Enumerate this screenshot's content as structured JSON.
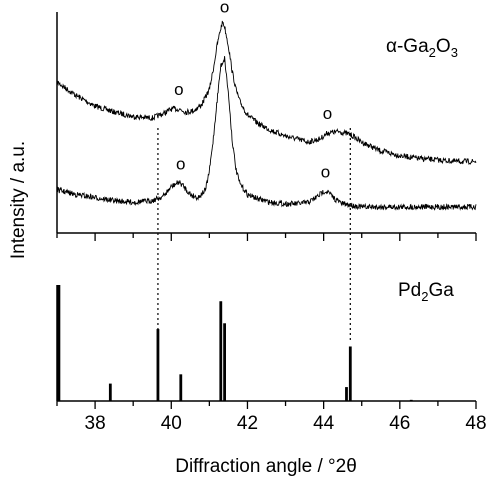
{
  "chart_data": [
    {
      "type": "line",
      "panel": "top",
      "title": "",
      "label": "α-Ga2O3",
      "label_parts": {
        "main": "α-Ga",
        "sub1": "2",
        "mid": "O",
        "sub2": "3"
      },
      "ylabel": "Intensity / a.u.",
      "xlim": [
        37,
        48
      ],
      "x_ticks": [
        38,
        40,
        42,
        44,
        46,
        48
      ],
      "yticks_shown": false,
      "peak_marker": "o",
      "series": [
        {
          "pattern": "upper",
          "x": [
            37.0,
            37.5,
            38.0,
            38.5,
            39.0,
            39.5,
            39.8,
            40.0,
            40.2,
            40.4,
            40.6,
            40.8,
            41.0,
            41.1,
            41.2,
            41.3,
            41.35,
            41.4,
            41.5,
            41.6,
            41.7,
            41.8,
            42.0,
            42.3,
            42.6,
            43.0,
            43.3,
            43.6,
            43.9,
            44.1,
            44.4,
            44.7,
            45.0,
            45.5,
            46.0,
            46.5,
            47.0,
            47.5,
            48.0
          ],
          "y": [
            0.6,
            0.51,
            0.44,
            0.4,
            0.37,
            0.36,
            0.39,
            0.42,
            0.42,
            0.4,
            0.41,
            0.45,
            0.55,
            0.68,
            0.84,
            0.96,
            1.0,
            0.97,
            0.84,
            0.67,
            0.55,
            0.47,
            0.38,
            0.32,
            0.28,
            0.24,
            0.22,
            0.2,
            0.22,
            0.26,
            0.27,
            0.25,
            0.2,
            0.14,
            0.11,
            0.09,
            0.08,
            0.07,
            0.07
          ]
        },
        {
          "pattern": "lower",
          "x": [
            37.0,
            37.5,
            38.0,
            38.5,
            39.0,
            39.5,
            39.8,
            40.0,
            40.2,
            40.3,
            40.5,
            40.7,
            40.9,
            41.0,
            41.1,
            41.2,
            41.3,
            41.4,
            41.5,
            41.6,
            41.7,
            41.8,
            42.0,
            42.3,
            42.6,
            43.0,
            43.3,
            43.6,
            43.8,
            44.0,
            44.1,
            44.3,
            44.5,
            45.0,
            45.5,
            46.0,
            47.0,
            48.0
          ],
          "y": [
            0.13,
            0.1,
            0.08,
            0.06,
            0.05,
            0.06,
            0.09,
            0.15,
            0.18,
            0.16,
            0.1,
            0.08,
            0.13,
            0.25,
            0.45,
            0.7,
            0.93,
            0.98,
            0.75,
            0.45,
            0.26,
            0.17,
            0.1,
            0.07,
            0.05,
            0.04,
            0.04,
            0.05,
            0.08,
            0.12,
            0.12,
            0.07,
            0.04,
            0.02,
            0.02,
            0.02,
            0.02,
            0.02
          ]
        }
      ],
      "annotations": [
        {
          "text": "o",
          "x": 40.2,
          "series": "upper"
        },
        {
          "text": "o",
          "x": 41.4,
          "series": "upper"
        },
        {
          "text": "o",
          "x": 44.1,
          "series": "upper"
        },
        {
          "text": "o",
          "x": 40.25,
          "series": "lower"
        },
        {
          "text": "o",
          "x": 44.05,
          "series": "lower"
        }
      ],
      "reference_lines": {
        "style": "dotted",
        "x": [
          39.65,
          44.7
        ]
      }
    },
    {
      "type": "bar",
      "panel": "bottom",
      "title": "",
      "label": "Pd2Ga",
      "label_parts": {
        "main": "Pd",
        "sub1": "2",
        "mid": "Ga"
      },
      "xlabel": "Diffraction angle / °2θ",
      "xlim": [
        37,
        48
      ],
      "x_ticks": [
        38,
        40,
        42,
        44,
        46,
        48
      ],
      "tick_labels": [
        "38",
        "40",
        "42",
        "44",
        "46",
        "48"
      ],
      "x": [
        37.05,
        38.4,
        39.65,
        40.25,
        41.3,
        41.4,
        44.6,
        44.7,
        46.3
      ],
      "values": [
        100,
        15,
        62,
        23,
        86,
        67,
        12,
        47,
        1
      ]
    }
  ]
}
